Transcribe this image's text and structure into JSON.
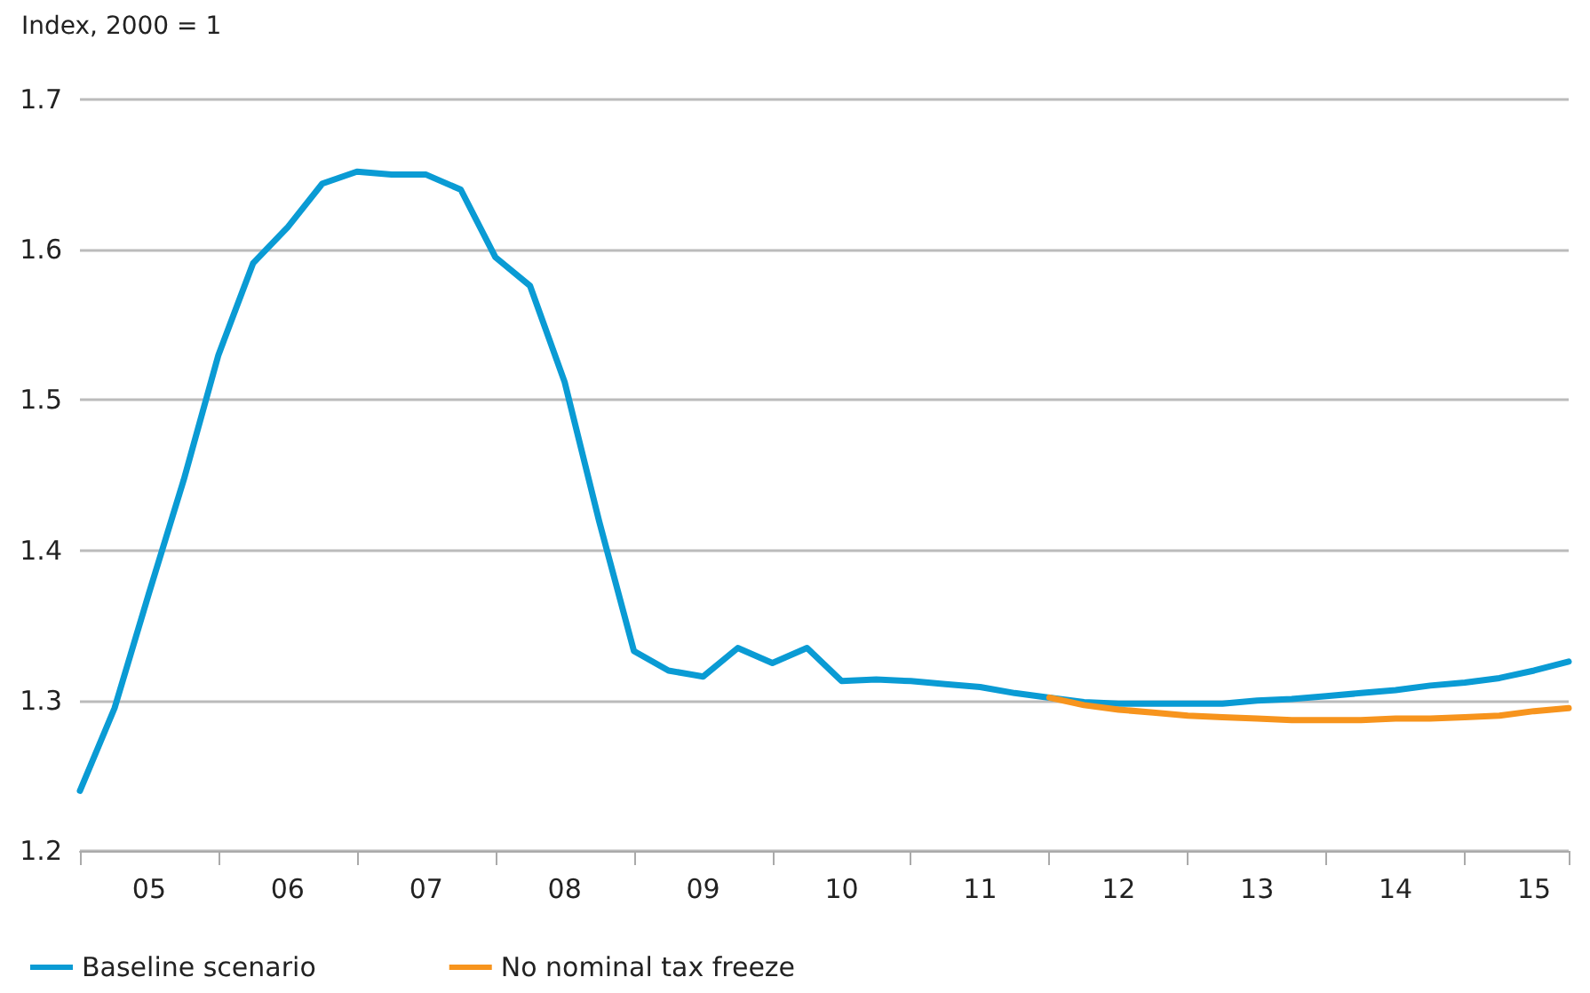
{
  "chart_data": {
    "type": "line",
    "ylabel": "Index, 2000 = 1",
    "categories": [
      null,
      null,
      "05",
      null,
      null,
      null,
      "06",
      null,
      null,
      null,
      "07",
      null,
      null,
      null,
      "08",
      null,
      null,
      null,
      "09",
      null,
      null,
      null,
      "10",
      null,
      null,
      null,
      "11",
      null,
      null,
      null,
      "12",
      null,
      null,
      null,
      "13",
      null,
      null,
      null,
      "14",
      null,
      null,
      null,
      "15",
      null
    ],
    "series": [
      {
        "name": "Baseline scenario",
        "color": "#0a9bd4",
        "values": [
          1.24,
          1.295,
          1.372,
          1.447,
          1.53,
          1.591,
          1.615,
          1.644,
          1.652,
          1.65,
          1.65,
          1.64,
          1.595,
          1.576,
          1.512,
          1.419,
          1.333,
          1.32,
          1.316,
          1.335,
          1.325,
          1.335,
          1.313,
          1.314,
          1.313,
          1.311,
          1.309,
          1.305,
          1.302,
          1.299,
          1.298,
          1.298,
          1.298,
          1.298,
          1.3,
          1.301,
          1.303,
          1.305,
          1.307,
          1.31,
          1.312,
          1.315,
          1.32,
          1.326
        ]
      },
      {
        "name": "No nominal tax freeze",
        "color": "#f7941d",
        "values": [
          null,
          null,
          null,
          null,
          null,
          null,
          null,
          null,
          null,
          null,
          null,
          null,
          null,
          null,
          null,
          null,
          null,
          null,
          null,
          null,
          null,
          null,
          null,
          null,
          null,
          null,
          null,
          null,
          1.302,
          1.297,
          1.294,
          1.292,
          1.29,
          1.289,
          1.288,
          1.287,
          1.287,
          1.287,
          1.288,
          1.288,
          1.289,
          1.29,
          1.293,
          1.295
        ]
      }
    ],
    "ylim": [
      1.2,
      1.7
    ],
    "yticks": [
      1.2,
      1.3,
      1.4,
      1.5,
      1.6,
      1.7
    ],
    "grid": "y",
    "legend": "bottom left",
    "marker": "none",
    "line_style": "solid"
  }
}
